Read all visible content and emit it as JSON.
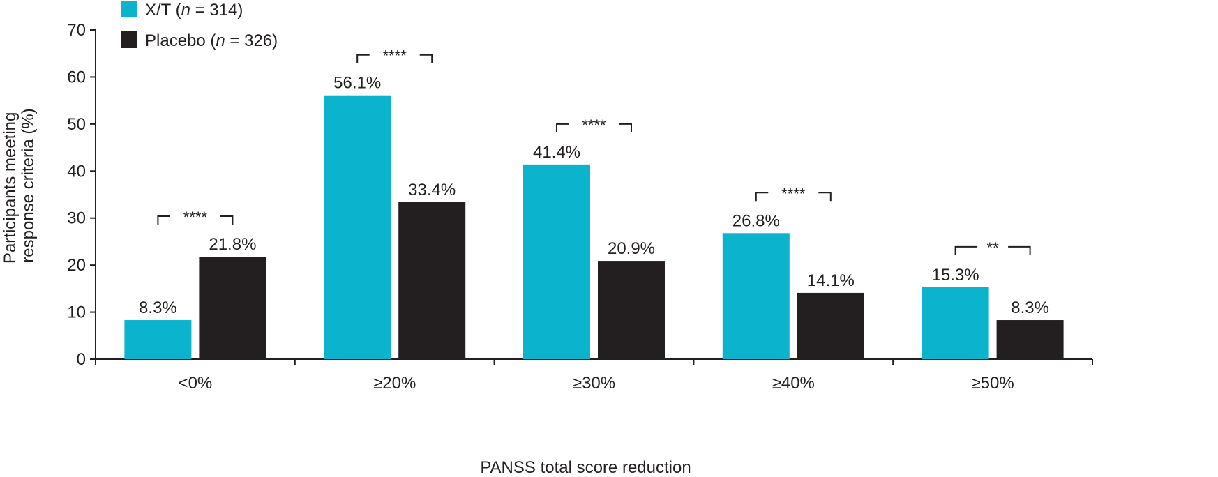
{
  "chart_data": {
    "type": "bar",
    "title": "",
    "xlabel": "PANSS total score reduction",
    "ylabel_lines": [
      "Participants meeting",
      "response criteria (%)"
    ],
    "ylim": [
      0,
      70
    ],
    "yticks": [
      0,
      10,
      20,
      30,
      40,
      50,
      60,
      70
    ],
    "grid": false,
    "legend_position": "top-left",
    "categories": [
      "<0%",
      "≥20%",
      "≥30%",
      "≥40%",
      "≥50%"
    ],
    "series": [
      {
        "name_main": "X/T (",
        "name_n": "n",
        "name_rest": " = 314)",
        "color": "#0bb3cd",
        "values": [
          8.3,
          56.1,
          41.4,
          26.8,
          15.3
        ],
        "labels": [
          "8.3%",
          "56.1%",
          "41.4%",
          "26.8%",
          "15.3%"
        ]
      },
      {
        "name_main": "Placebo (",
        "name_n": "n",
        "name_rest": " = 326)",
        "color": "#231f20",
        "values": [
          21.8,
          33.4,
          20.9,
          14.1,
          8.3
        ],
        "labels": [
          "21.8%",
          "33.4%",
          "20.9%",
          "14.1%",
          "8.3%"
        ]
      }
    ],
    "significance": [
      "****",
      "****",
      "****",
      "****",
      "**"
    ]
  }
}
